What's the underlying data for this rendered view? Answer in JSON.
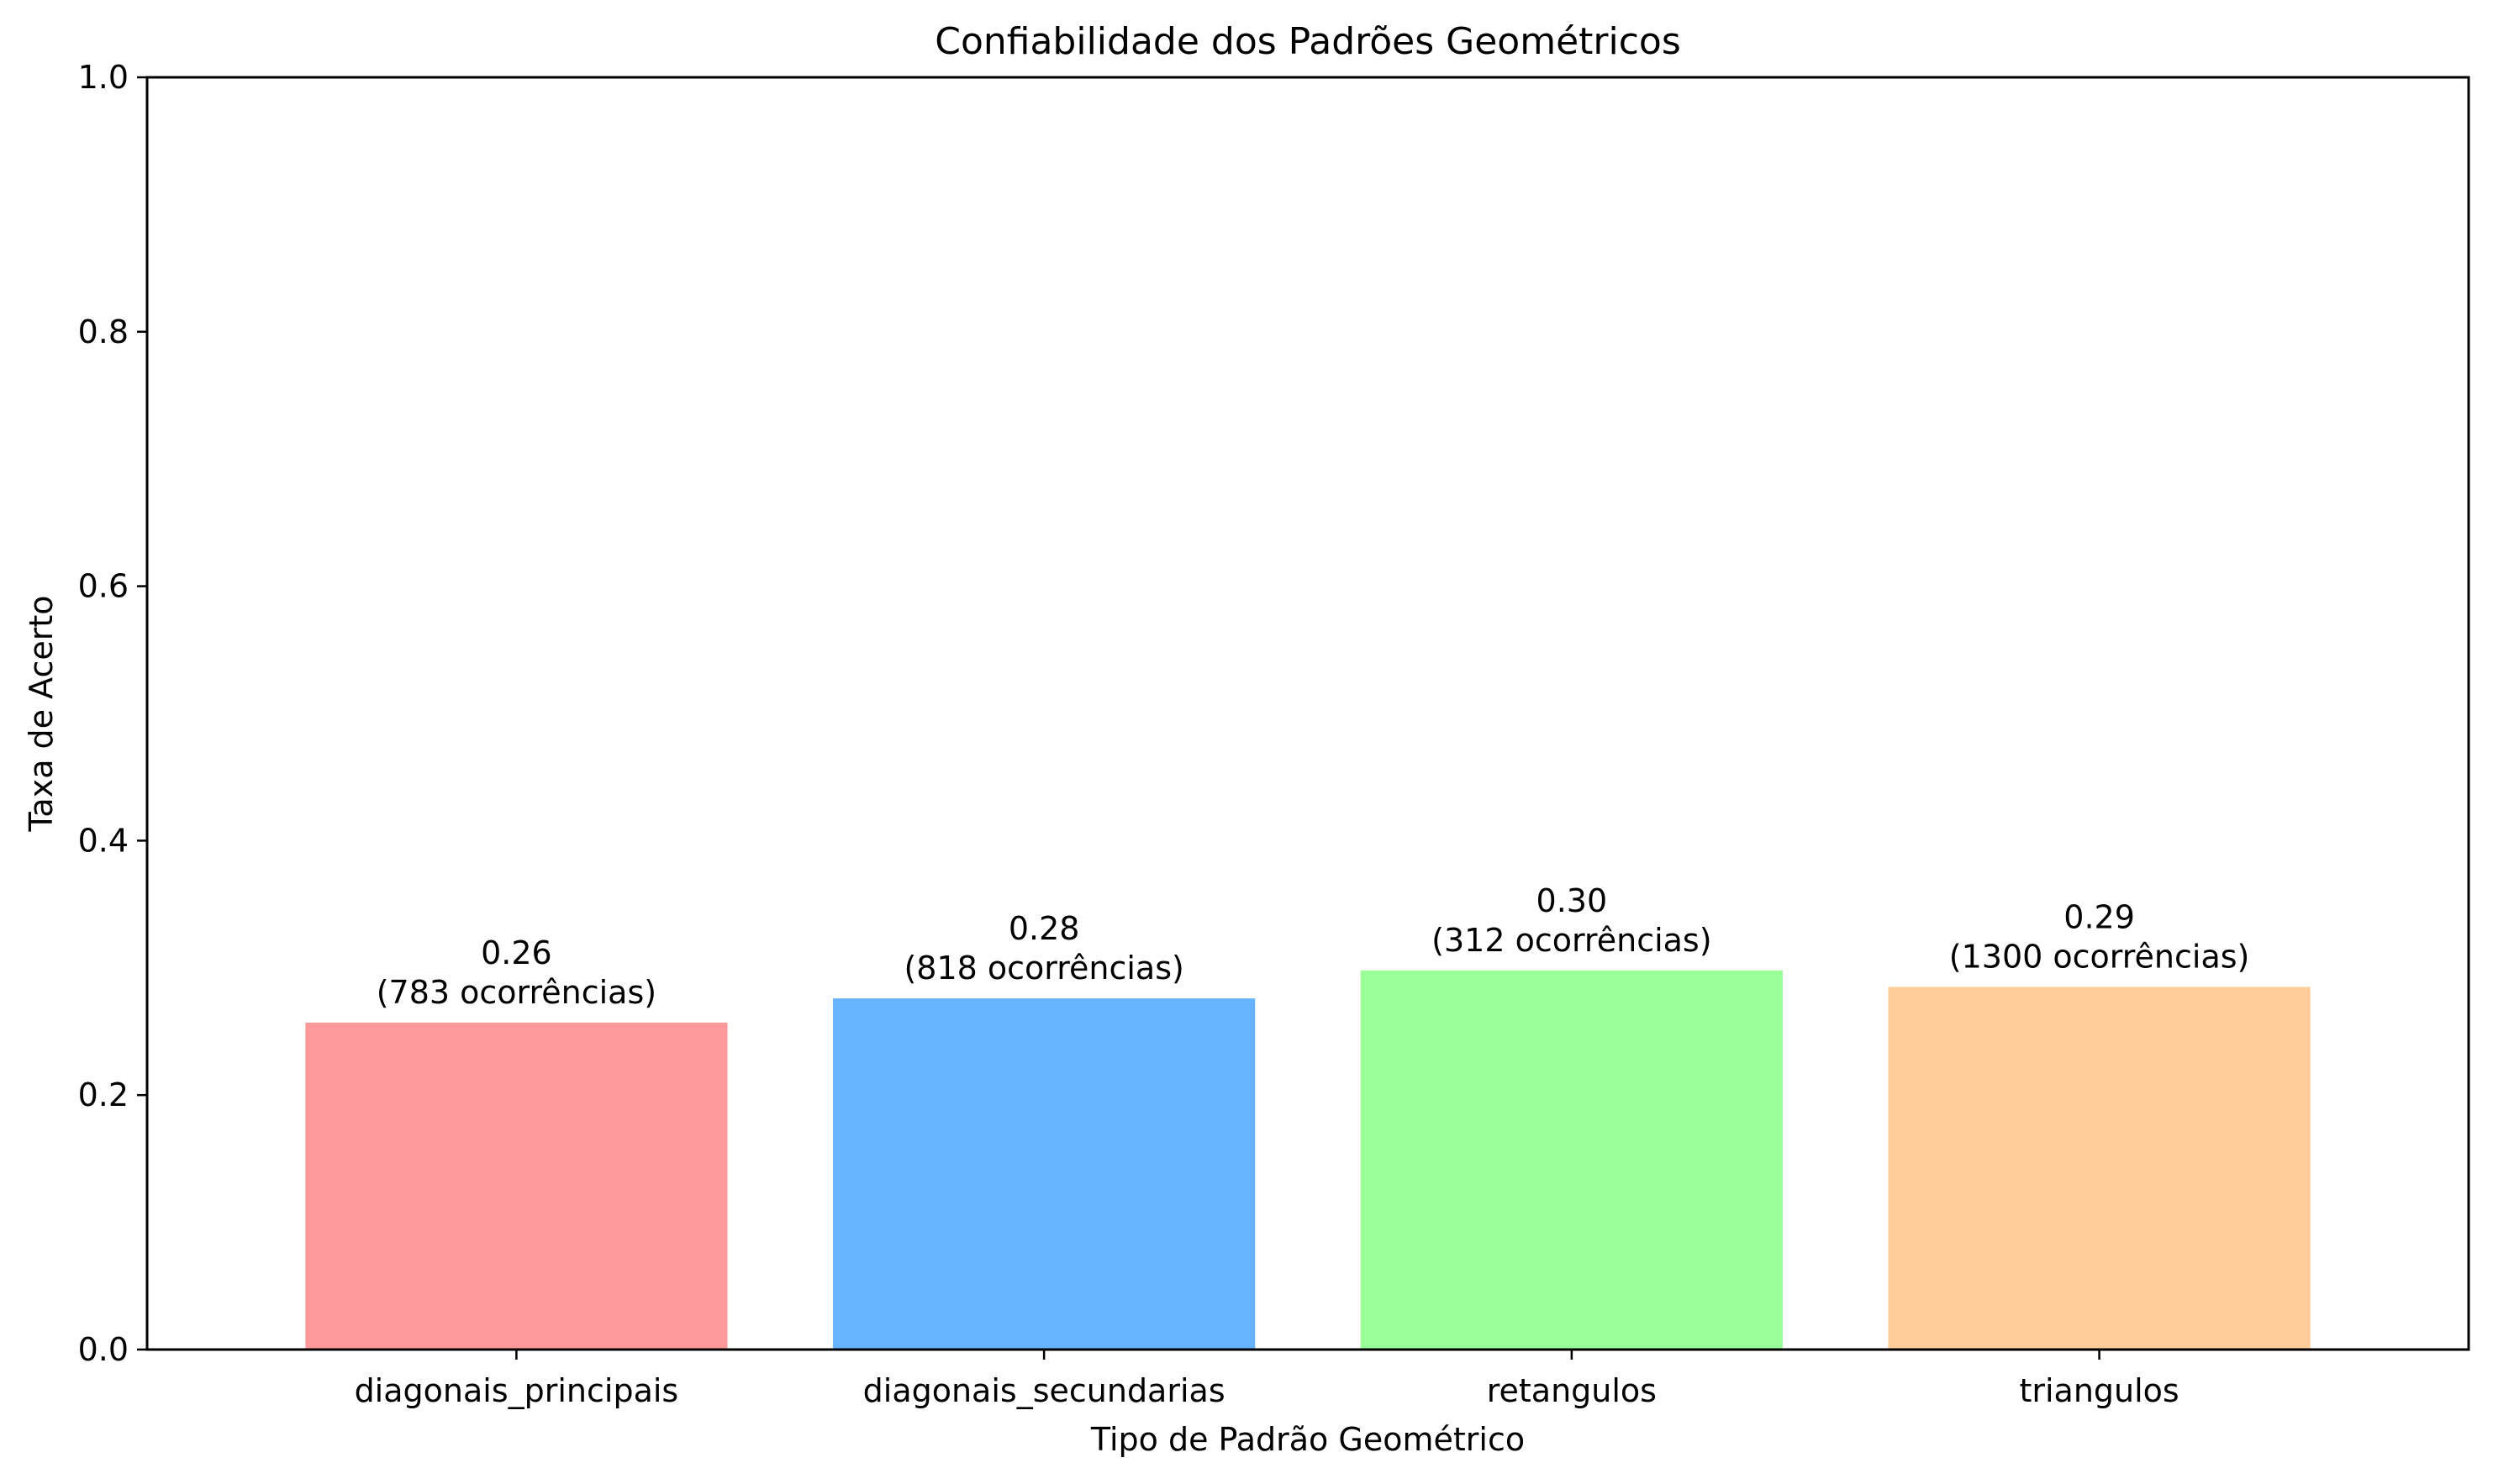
{
  "chart_data": {
    "type": "bar",
    "title": "Confiabilidade dos Padrões Geométricos",
    "xlabel": "Tipo de Padrão Geométrico",
    "ylabel": "Taxa de Acerto",
    "categories": [
      "diagonais_principais",
      "diagonais_secundarias",
      "retangulos",
      "triangulos"
    ],
    "values": [
      0.257,
      0.276,
      0.298,
      0.285
    ],
    "value_labels": [
      "0.26",
      "0.28",
      "0.30",
      "0.29"
    ],
    "count_labels": [
      "(783 ocorrências)",
      "(818 ocorrências)",
      "(312 ocorrências)",
      "(1300 ocorrências)"
    ],
    "colors": [
      "#ff9999",
      "#66b3ff",
      "#99ff99",
      "#ffcc99"
    ],
    "ylim": [
      0,
      1.0
    ],
    "yticks": [
      "0.0",
      "0.2",
      "0.4",
      "0.6",
      "0.8",
      "1.0"
    ],
    "grid": false,
    "legend": false
  }
}
